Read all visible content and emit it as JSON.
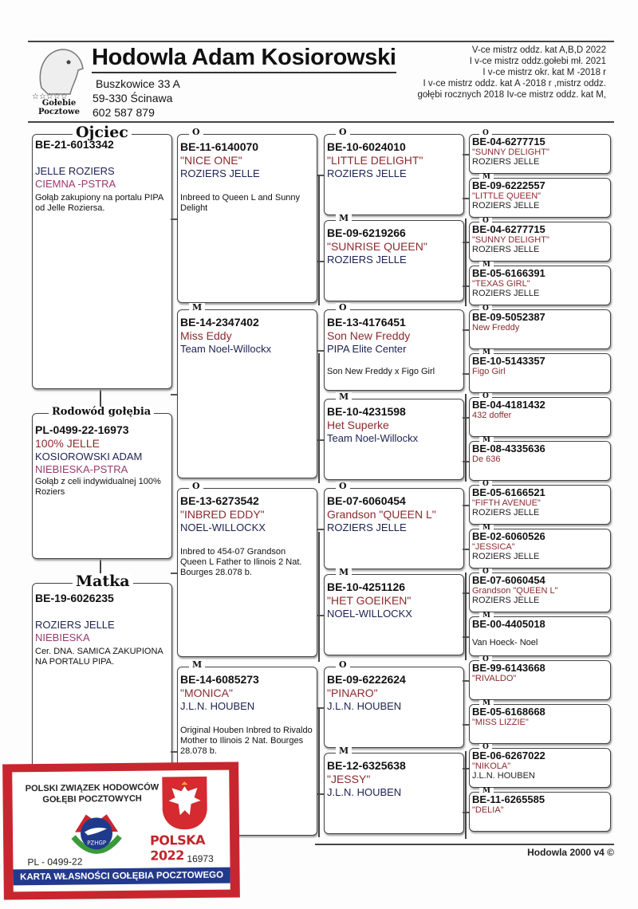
{
  "header": {
    "title": "Hodowla Adam Kosiorowski",
    "address_lines": [
      "Buszkowice 33 A",
      "59-330 Ścinawa",
      "602 587 879"
    ],
    "logo_text": [
      "Gołebie",
      "Pocztowe"
    ],
    "achievements": [
      "V-ce mistrz oddz. kat A,B,D 2022",
      "I v-ce mistrz oddz.gołebi mł. 2021",
      "I v-ce mistrz okr. kat M -2018 r",
      "I v-ce mistrz oddz. kat A -2018 r ,mistrz oddz.",
      "gołębi rocznych 2018 Iv-ce mistrz oddz. kat M,"
    ]
  },
  "father": {
    "label": "Ojciec",
    "ring": "BE-21-6013342",
    "breeder": "JELLE ROZIERS",
    "color": "CIEMNA -PSTRA",
    "notes": "Gołąb zakupiony na portalu PIPA od Jelle Roziersa."
  },
  "subject": {
    "label": "Rodowód gołębia",
    "ring": "PL-0499-22-16973",
    "name": "100% JELLE",
    "breeder": "KOSIOROWSKI ADAM",
    "color": "NIEBIESKA-PSTRA",
    "notes": "Gołąb z celi indywidualnej 100% Roziers"
  },
  "mother": {
    "label": "Matka",
    "ring": "BE-19-6026235",
    "breeder": "ROZIERS JELLE",
    "color": "NIEBIESKA",
    "notes": "Cer. DNA. SAMICA ZAKUPIONA NA PORTALU PIPA."
  },
  "gen2": [
    {
      "label": "O",
      "ring": "BE-11-6140070",
      "name": "\"NICE ONE\"",
      "breeder": "ROZIERS JELLE",
      "notes": "Inbreed to Queen L and Sunny Delight"
    },
    {
      "label": "M",
      "ring": "BE-14-2347402",
      "name": "Miss Eddy",
      "breeder": "Team Noel-Willockx",
      "notes": ""
    },
    {
      "label": "O",
      "ring": "BE-13-6273542",
      "name": "\"INBRED EDDY\"",
      "breeder": "NOEL-WILLOCKX",
      "notes": "Inbred to 454-07 Grandson Queen L Father to Ilinois 2 Nat. Bourges 28.078 b."
    },
    {
      "label": "M",
      "ring": "BE-14-6085273",
      "name": "\"MONICA\"",
      "breeder": "J.L.N. HOUBEN",
      "notes": "Original Houben Inbred to Rivaldo Mother to Ilinois 2 Nat. Bourges 28.078 b."
    }
  ],
  "gen3": [
    {
      "label": "O",
      "ring": "BE-10-6024010",
      "name": "\"LITTLE DELIGHT\"",
      "breeder": "ROZIERS JELLE",
      "notes": ""
    },
    {
      "label": "M",
      "ring": "BE-09-6219266",
      "name": "\"SUNRISE QUEEN\"",
      "breeder": "ROZIERS JELLE",
      "notes": ""
    },
    {
      "label": "O",
      "ring": "BE-13-4176451",
      "name": "Son New Freddy",
      "breeder": "PIPA Elite Center",
      "notes": "Son New Freddy x Figo Girl"
    },
    {
      "label": "M",
      "ring": "BE-10-4231598",
      "name": "Het Superke",
      "breeder": "Team Noel-Willockx",
      "notes": ""
    },
    {
      "label": "O",
      "ring": "BE-07-6060454",
      "name": "Grandson \"QUEEN L\"",
      "breeder": "ROZIERS JELLE",
      "notes": ""
    },
    {
      "label": "M",
      "ring": "BE-10-4251126",
      "name": "\"HET GOEIKEN\"",
      "breeder": "NOEL-WILLOCKX",
      "notes": ""
    },
    {
      "label": "O",
      "ring": "BE-09-6222624",
      "name": "\"PINARO\"",
      "breeder": "J.L.N. HOUBEN",
      "notes": ""
    },
    {
      "label": "M",
      "ring": "BE-12-6325638",
      "name": "\"JESSY\"",
      "breeder": "J.L.N. HOUBEN",
      "notes": ""
    }
  ],
  "gen4": [
    {
      "label": "O",
      "ring": "BE-04-6277715",
      "name": "\"SUNNY DELIGHT\"",
      "breeder": "ROZIERS JELLE",
      "notes": ""
    },
    {
      "label": "M",
      "ring": "BE-09-6222557",
      "name": "\"LITTLE QUEEN\"",
      "breeder": "ROZIERS JELLE",
      "notes": ""
    },
    {
      "label": "O",
      "ring": "BE-04-6277715",
      "name": "\"SUNNY DELIGHT\"",
      "breeder": "ROZIERS JELLE",
      "notes": ""
    },
    {
      "label": "M",
      "ring": "BE-05-6166391",
      "name": "\"TEXAS GIRL\"",
      "breeder": "ROZIERS JELLE",
      "notes": ""
    },
    {
      "label": "O",
      "ring": "BE-09-5052387",
      "name": "New Freddy",
      "breeder": "",
      "notes": ""
    },
    {
      "label": "M",
      "ring": "BE-10-5143357",
      "name": "Figo Girl",
      "breeder": "",
      "notes": ""
    },
    {
      "label": "O",
      "ring": "BE-04-4181432",
      "name": "432 doffer",
      "breeder": "",
      "notes": ""
    },
    {
      "label": "M",
      "ring": "BE-08-4335636",
      "name": "De 636",
      "breeder": "",
      "notes": ""
    },
    {
      "label": "O",
      "ring": "BE-05-6166521",
      "name": "\"FIFTH AVENUE\"",
      "breeder": "ROZIERS JELLE",
      "notes": ""
    },
    {
      "label": "M",
      "ring": "BE-02-6060526",
      "name": "\"JESSICA\"",
      "breeder": "ROZIERS JELLE",
      "notes": ""
    },
    {
      "label": "O",
      "ring": "BE-07-6060454",
      "name": "Grandson \"QUEEN L\"",
      "breeder": "ROZIERS JELLE",
      "notes": ""
    },
    {
      "label": "M",
      "ring": "BE-00-4405018",
      "name": "",
      "breeder": "",
      "notes": "Van Hoeck- Noel"
    },
    {
      "label": "O",
      "ring": "BE-99-6143668",
      "name": "\"RIVALDO\"",
      "breeder": "",
      "notes": ""
    },
    {
      "label": "M",
      "ring": "BE-05-6168668",
      "name": "\"MISS LIZZIE\"",
      "breeder": "",
      "notes": ""
    },
    {
      "label": "O",
      "ring": "BE-06-6267022",
      "name": "\"NIKOLA\"",
      "breeder": "J.L.N. HOUBEN",
      "notes": ""
    },
    {
      "label": "M",
      "ring": "BE-11-6265585",
      "name": "\"DELIA\"",
      "breeder": "",
      "notes": ""
    }
  ],
  "card": {
    "org_lines": [
      "POLSKI ZWIĄZEK HODOWCÓW",
      "GOŁĘBI POCZTOWYCH"
    ],
    "logo_text": "PZHGP",
    "year": "POLSKA 2022",
    "ring_left": "PL - 0499-22",
    "ring_right": "16973",
    "band": "KARTA WŁASNOŚCI GOŁĘBIA POCZTOWEGO",
    "colors": {
      "red": "#c8262f",
      "blue": "#233a8c"
    }
  },
  "footer": "Hodowla 2000 v4 ©",
  "colors": {
    "name": "#8b2a2e",
    "breeder": "#1c2250",
    "pigeon_color": "#9a3a6e"
  }
}
